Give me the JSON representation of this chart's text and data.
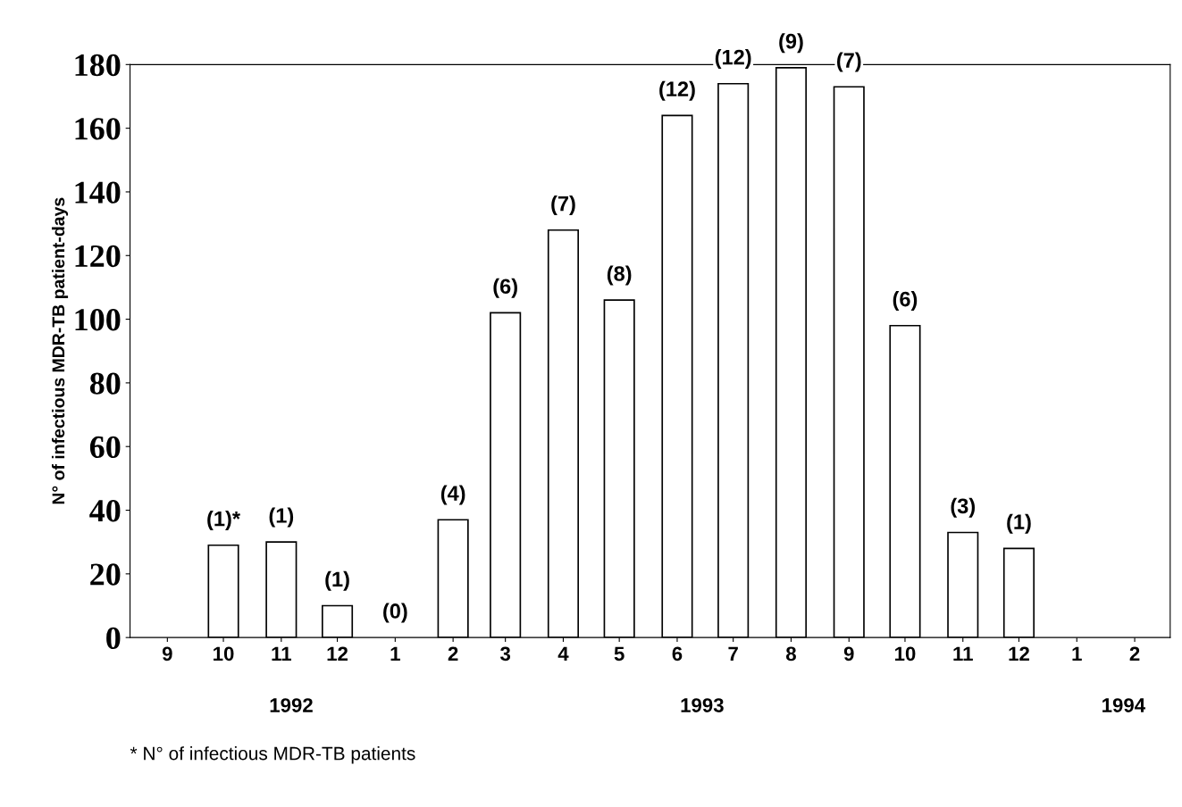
{
  "chart_data": {
    "type": "bar",
    "ylabel": "N° of infectious MDR-TB patient-days",
    "x": [
      "1992-09",
      "1992-10",
      "1992-11",
      "1992-12",
      "1993-01",
      "1993-02",
      "1993-03",
      "1993-04",
      "1993-05",
      "1993-06",
      "1993-07",
      "1993-08",
      "1993-09",
      "1993-10",
      "1993-11",
      "1993-12",
      "1994-01",
      "1994-02"
    ],
    "values": [
      0,
      29,
      30,
      10,
      0,
      37,
      102,
      128,
      106,
      164,
      174,
      179,
      173,
      98,
      33,
      28,
      0,
      0
    ],
    "xlim": [
      "1992-08-12",
      "1994-02-20"
    ],
    "xticks": [
      {
        "value": "1992-09",
        "label": "9"
      },
      {
        "value": "1992-10",
        "label": "10"
      },
      {
        "value": "1992-11",
        "label": "11"
      },
      {
        "value": "1992-12",
        "label": "12"
      },
      {
        "value": "1993-01",
        "label": "1"
      },
      {
        "value": "1993-02",
        "label": "2"
      },
      {
        "value": "1993-03",
        "label": "3"
      },
      {
        "value": "1993-04",
        "label": "4"
      },
      {
        "value": "1993-05",
        "label": "5"
      },
      {
        "value": "1993-06",
        "label": "6"
      },
      {
        "value": "1993-07",
        "label": "7"
      },
      {
        "value": "1993-08",
        "label": "8"
      },
      {
        "value": "1993-09",
        "label": "9"
      },
      {
        "value": "1993-10",
        "label": "10"
      },
      {
        "value": "1993-11",
        "label": "11"
      },
      {
        "value": "1993-12",
        "label": "12"
      },
      {
        "value": "1994-01",
        "label": "1"
      },
      {
        "value": "1994-02",
        "label": "2"
      }
    ],
    "color": "#ffffff",
    "ylim": [
      0,
      180
    ],
    "yticks": [
      0,
      20,
      40,
      60,
      80,
      100,
      120,
      140,
      160,
      180
    ],
    "grid": false,
    "legend": false,
    "annotations": [
      {
        "text": "(1)*",
        "x": "1992-10",
        "y": 29
      },
      {
        "text": "(1)",
        "x": "1992-11",
        "y": 30
      },
      {
        "text": "(1)",
        "x": "1992-12",
        "y": 10
      },
      {
        "text": "(0)",
        "x": "1993-01",
        "y": 0
      },
      {
        "text": "(4)",
        "x": "1993-02",
        "y": 37
      },
      {
        "text": "(6)",
        "x": "1993-03",
        "y": 102
      },
      {
        "text": "(7)",
        "x": "1993-04",
        "y": 128
      },
      {
        "text": "(8)",
        "x": "1993-05",
        "y": 106
      },
      {
        "text": "(12)",
        "x": "1993-06",
        "y": 164
      },
      {
        "text": "(12)",
        "x": "1993-07",
        "y": 174
      },
      {
        "text": "(9)",
        "x": "1993-08",
        "y": 179
      },
      {
        "text": "(7)",
        "x": "1993-09",
        "y": 173
      },
      {
        "text": "(6)",
        "x": "1993-10",
        "y": 98
      },
      {
        "text": "(3)",
        "x": "1993-11",
        "y": 33
      },
      {
        "text": "(1)",
        "x": "1993-12",
        "y": 28
      },
      "1992",
      "1993",
      "1994",
      "* N° of infectious MDR-TB patients"
    ]
  }
}
